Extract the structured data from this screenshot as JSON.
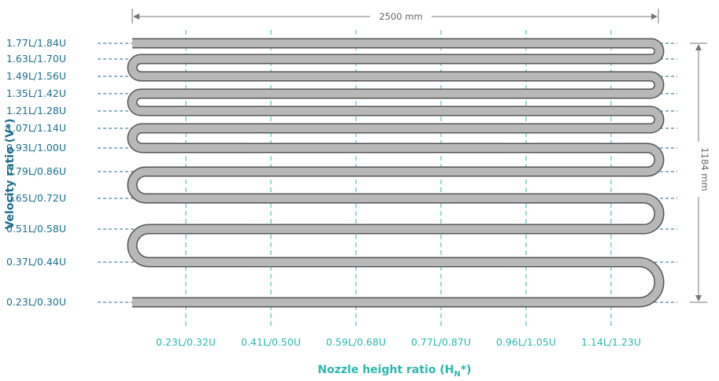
{
  "colors": {
    "row_text": "#1d6f8c",
    "row_guide": "#1d6f8c",
    "col_text": "#2cb8b0",
    "col_guide": "#2cb8b0",
    "tube_fill": "#b8b8b8",
    "tube_stroke": "#555555",
    "dimension": "#777777"
  },
  "dimensions": {
    "width_label": "2500 mm",
    "height_label": "1184 mm"
  },
  "axes": {
    "y_title": "Velocity ratio (V*)",
    "x_title_main": "Nozzle height ratio (H",
    "x_title_sub": "N",
    "x_title_end": "*)"
  },
  "rows": [
    "1.77L/1.84U",
    "1.63L/1.70U",
    "1.49L/1.56U",
    "1.35L/1.42U",
    "1.21L/1.28U",
    "1.07L/1.14U",
    "0.93L/1.00U",
    "0.79L/0.86U",
    "0.65L/0.72U",
    "0.51L/0.58U",
    "0.37L/0.44U",
    "0.23L/0.30U"
  ],
  "columns": [
    "0.23L/0.32U",
    "0.41L/0.50U",
    "0.59L/0.68U",
    "0.77L/0.87U",
    "0.96L/1.05U",
    "1.14L/1.23U"
  ]
}
